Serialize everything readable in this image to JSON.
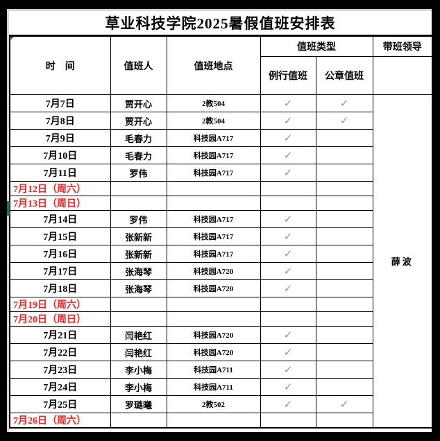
{
  "title": "草业科技学院2025暑假值班安排表",
  "table": {
    "headers": {
      "time": "时　间",
      "person": "值班人",
      "place": "值班地点",
      "type_group": "值班类型",
      "routine": "例行值班",
      "seal": "公章值班",
      "leader": "带班领导"
    },
    "leader_name": "薛波",
    "check_glyph": "✓",
    "rows": [
      {
        "date": "7月7日",
        "person": "贾开心",
        "place": "2教504",
        "routine": true,
        "seal": true,
        "weekend": false
      },
      {
        "date": "7月8日",
        "person": "贾开心",
        "place": "2教504",
        "routine": true,
        "seal": true,
        "weekend": false
      },
      {
        "date": "7月9日",
        "person": "毛春力",
        "place": "科技园A717",
        "routine": true,
        "seal": false,
        "weekend": false
      },
      {
        "date": "7月10日",
        "person": "毛春力",
        "place": "科技园A717",
        "routine": true,
        "seal": false,
        "weekend": false
      },
      {
        "date": "7月11日",
        "person": "罗伟",
        "place": "科技园A717",
        "routine": true,
        "seal": false,
        "weekend": false
      },
      {
        "date": "7月12日（周六）",
        "person": "",
        "place": "",
        "routine": false,
        "seal": false,
        "weekend": true
      },
      {
        "date": "7月13日（周日）",
        "person": "",
        "place": "",
        "routine": false,
        "seal": false,
        "weekend": true
      },
      {
        "date": "7月14日",
        "person": "罗伟",
        "place": "科技园A717",
        "routine": true,
        "seal": false,
        "weekend": false
      },
      {
        "date": "7月15日",
        "person": "张新新",
        "place": "科技园A717",
        "routine": true,
        "seal": false,
        "weekend": false
      },
      {
        "date": "7月16日",
        "person": "张新新",
        "place": "科技园A717",
        "routine": true,
        "seal": false,
        "weekend": false
      },
      {
        "date": "7月17日",
        "person": "张海琴",
        "place": "科技园A720",
        "routine": true,
        "seal": false,
        "weekend": false
      },
      {
        "date": "7月18日",
        "person": "张海琴",
        "place": "科技园A720",
        "routine": true,
        "seal": false,
        "weekend": false
      },
      {
        "date": "7月19日（周六）",
        "person": "",
        "place": "",
        "routine": false,
        "seal": false,
        "weekend": true
      },
      {
        "date": "7月20日（周日）",
        "person": "",
        "place": "",
        "routine": false,
        "seal": false,
        "weekend": true
      },
      {
        "date": "7月21日",
        "person": "闫艳红",
        "place": "科技园A720",
        "routine": true,
        "seal": false,
        "weekend": false
      },
      {
        "date": "7月22日",
        "person": "闫艳红",
        "place": "科技园A720",
        "routine": true,
        "seal": false,
        "weekend": false
      },
      {
        "date": "7月23日",
        "person": "李小梅",
        "place": "科技园A711",
        "routine": true,
        "seal": false,
        "weekend": false
      },
      {
        "date": "7月24日",
        "person": "李小梅",
        "place": "科技园A711",
        "routine": true,
        "seal": false,
        "weekend": false
      },
      {
        "date": "7月25日",
        "person": "罗璐曦",
        "place": "2教502",
        "routine": true,
        "seal": true,
        "weekend": false
      },
      {
        "date": "7月26日（周六）",
        "person": "",
        "place": "",
        "routine": false,
        "seal": false,
        "weekend": true
      }
    ]
  },
  "colors": {
    "weekend_red": "#f71e1e",
    "check_gray_blue": "#8b93a4",
    "marker_green": "#1b7444",
    "triangle_green": "#1d7a3c"
  }
}
